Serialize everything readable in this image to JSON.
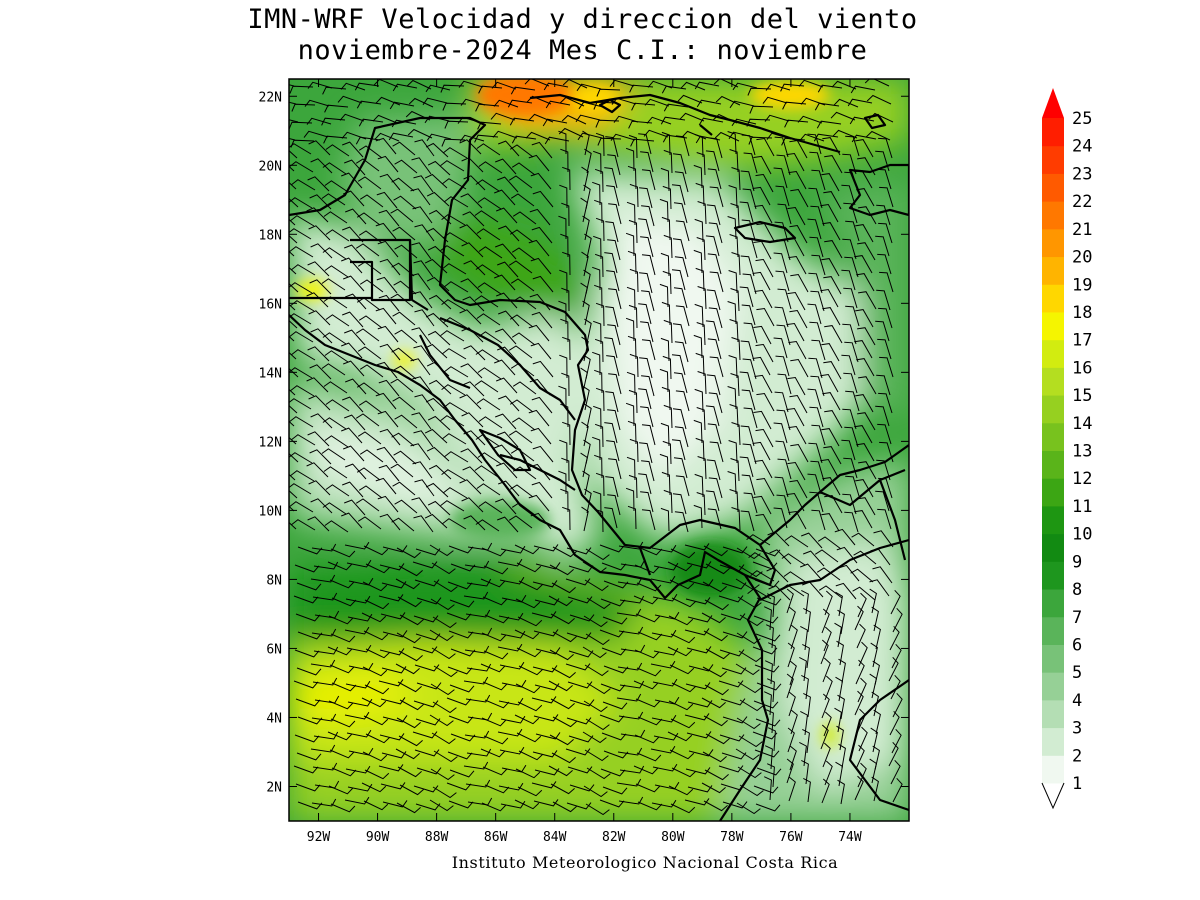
{
  "title": {
    "line1": "IMN-WRF Velocidad y direccion del viento",
    "line2": "noviembre-2024 Mes C.I.: noviembre"
  },
  "credit": "Instituto Meteorologico Nacional Costa Rica",
  "map": {
    "lon_range": [
      -93.0,
      -72.0
    ],
    "lat_range": [
      1.0,
      22.5
    ],
    "lon_ticks": [
      "92W",
      "90W",
      "88W",
      "86W",
      "84W",
      "82W",
      "80W",
      "78W",
      "76W",
      "74W"
    ],
    "lat_ticks": [
      "2N",
      "4N",
      "6N",
      "8N",
      "10N",
      "12N",
      "14N",
      "16N",
      "18N",
      "20N",
      "22N"
    ]
  },
  "colorbar": {
    "labels": [
      "1",
      "2",
      "3",
      "4",
      "5",
      "6",
      "7",
      "8",
      "9",
      "10",
      "11",
      "12",
      "13",
      "14",
      "15",
      "16",
      "17",
      "18",
      "19",
      "20",
      "21",
      "22",
      "23",
      "24",
      "25"
    ],
    "colors": [
      "#f0f8f0",
      "#d2ecd2",
      "#b4deb4",
      "#96d096",
      "#78c278",
      "#5ab45a",
      "#3ca63c",
      "#1e961e",
      "#128a12",
      "#1e9612",
      "#3ca614",
      "#5ab41a",
      "#78c21e",
      "#96d020",
      "#b4de20",
      "#d2ec10",
      "#f5f500",
      "#ffd700",
      "#ffb400",
      "#ff9600",
      "#ff7800",
      "#ff5a00",
      "#ff3c00",
      "#ff1e00",
      "#ff0000"
    ]
  }
}
